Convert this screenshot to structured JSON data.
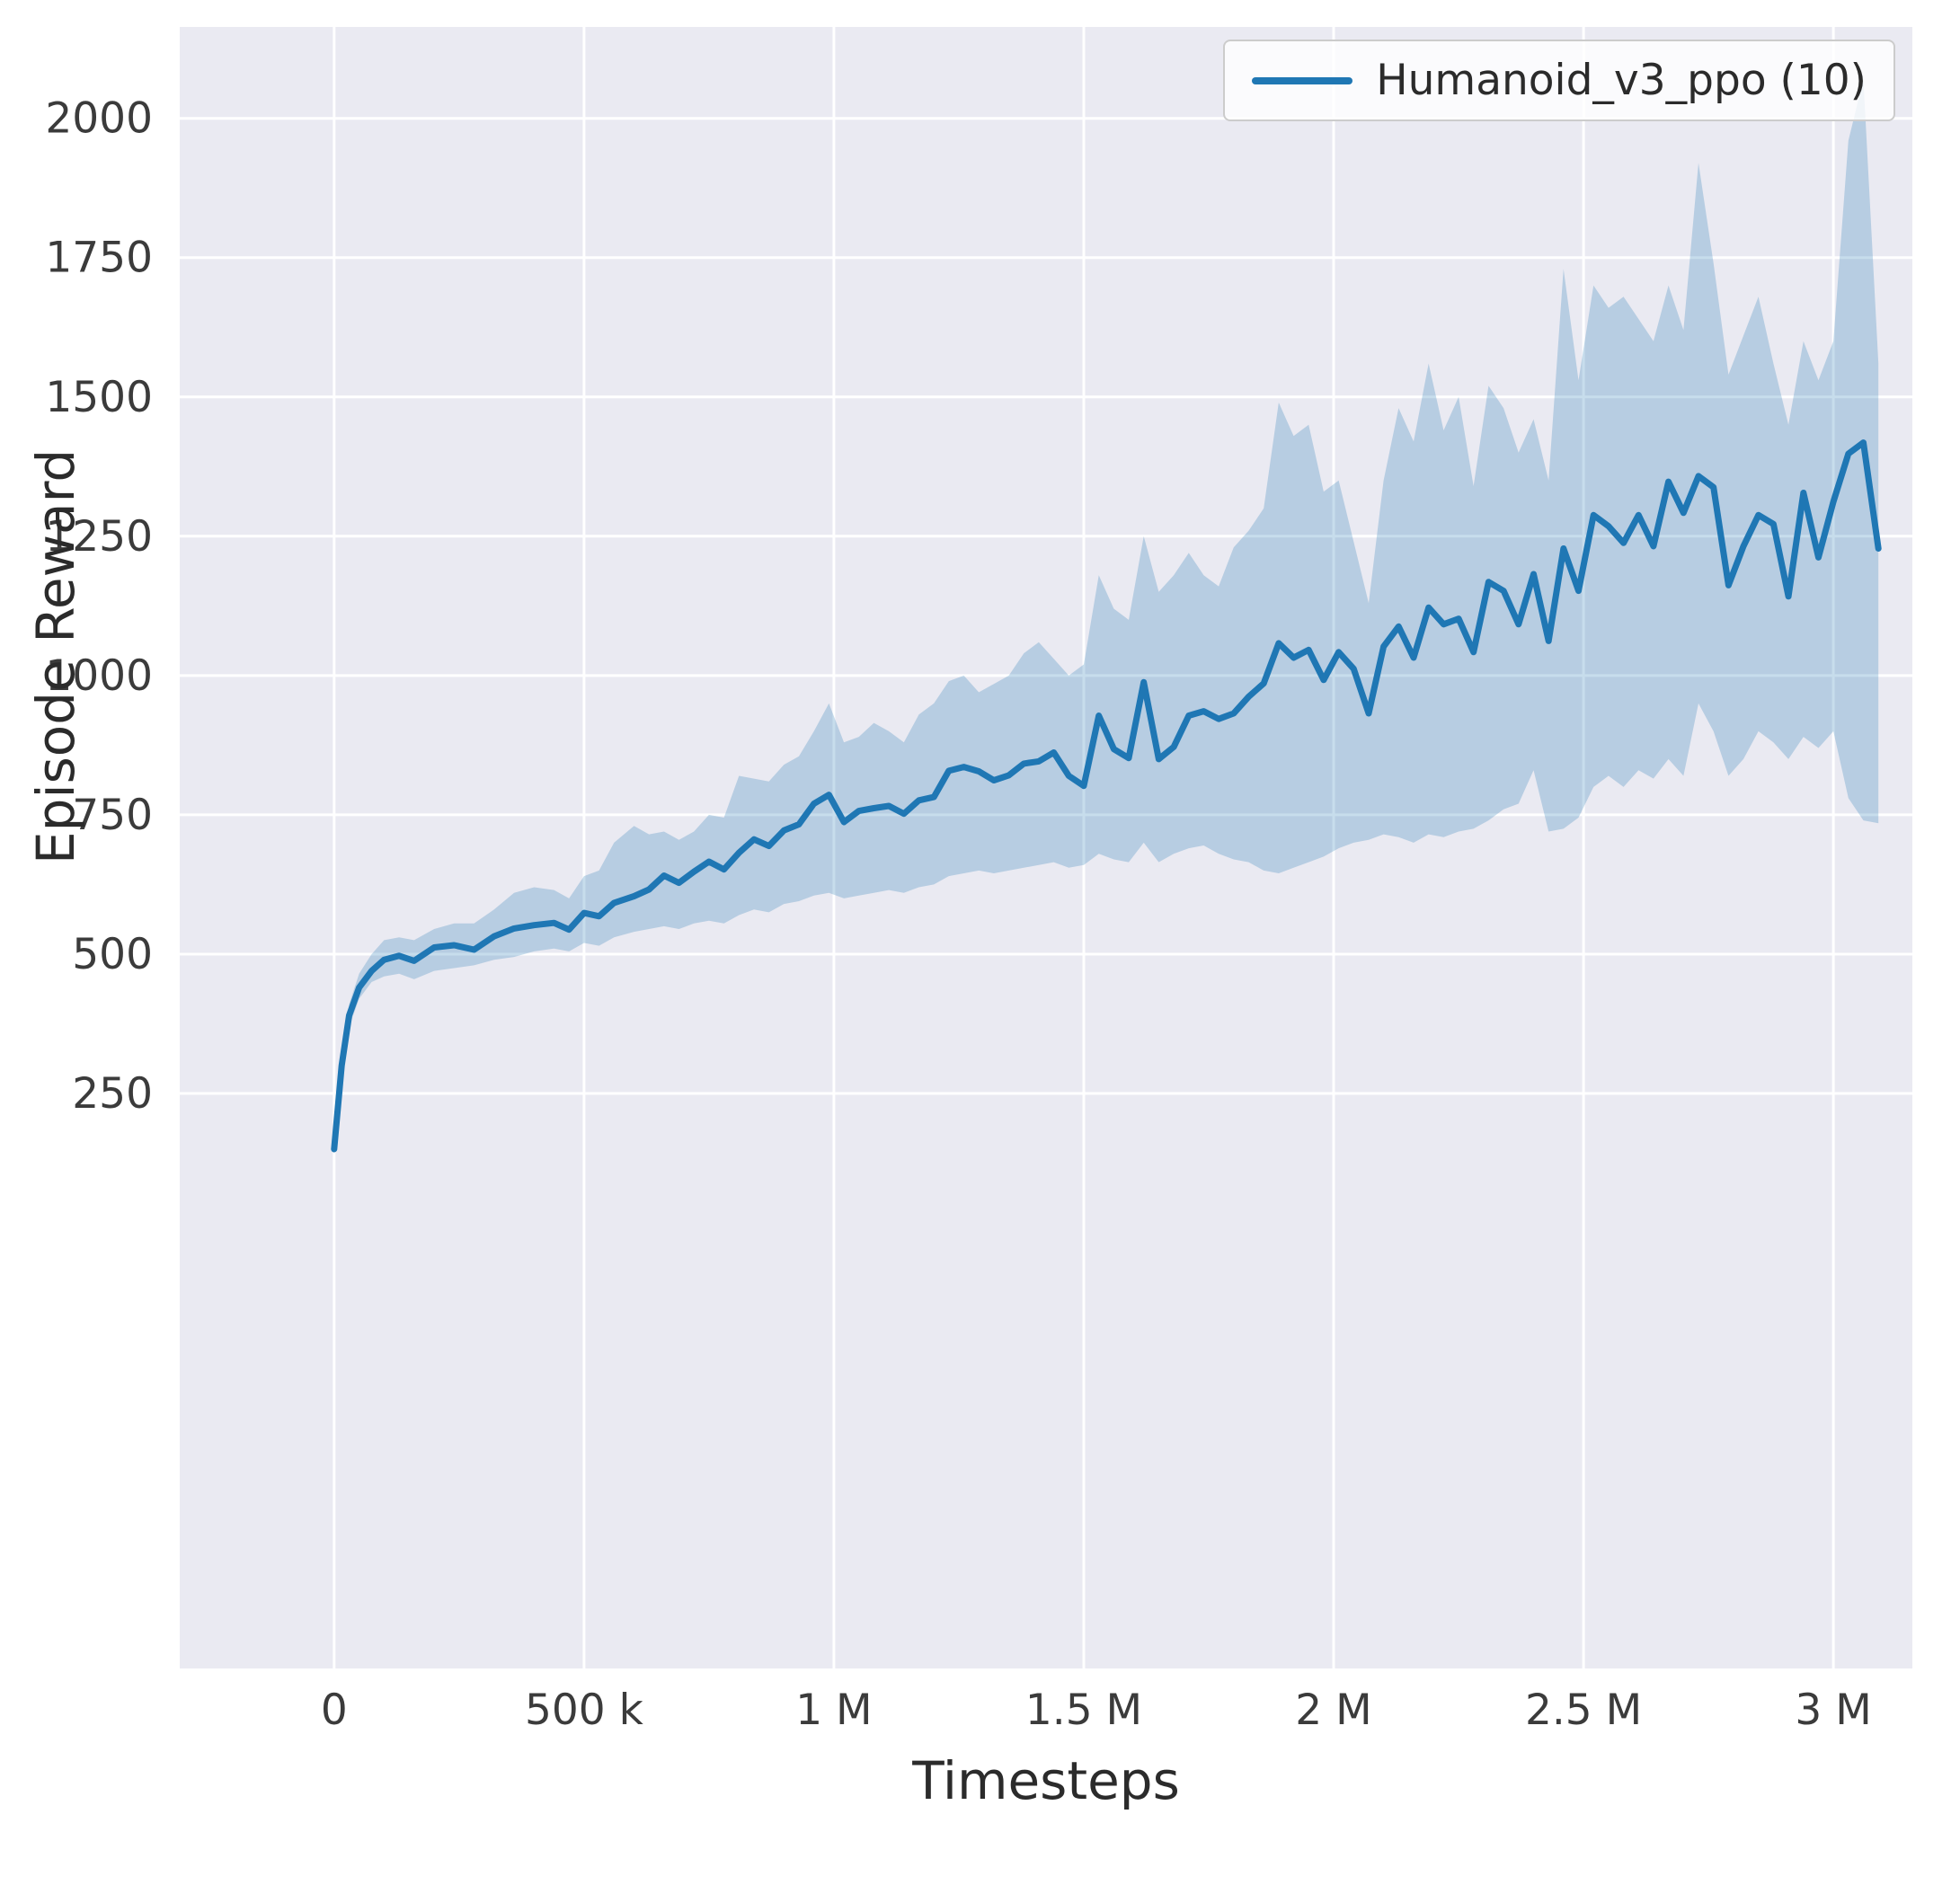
{
  "chart_data": {
    "type": "line",
    "xlabel": "Timesteps",
    "ylabel": "Episode Reward",
    "axes_background": "#eaeaf2",
    "grid_color": "#ffffff",
    "grid": true,
    "xlim": [
      -309000,
      3158000
    ],
    "ylim": [
      -782,
      2164
    ],
    "xticks": {
      "values": [
        0,
        500000,
        1000000,
        1500000,
        2000000,
        2500000,
        3000000
      ],
      "labels": [
        "0",
        "500 k",
        "1 M",
        "1.5 M",
        "2 M",
        "2.5 M",
        "3 M"
      ]
    },
    "yticks": {
      "values": [
        250,
        500,
        750,
        1000,
        1250,
        1500,
        1750,
        2000
      ],
      "labels": [
        "250",
        "500",
        "750",
        "1000",
        "1250",
        "1500",
        "1750",
        "2000"
      ]
    },
    "legend": {
      "location": "upper right"
    },
    "series": [
      {
        "name": "Humanoid_v3_ppo (10)",
        "color": "#1f77b4",
        "band_color": "rgba(31,119,180,0.25)",
        "x": [
          0,
          15000,
          30000,
          50000,
          75000,
          100000,
          130000,
          160000,
          200000,
          240000,
          280000,
          320000,
          360000,
          400000,
          440000,
          470000,
          500000,
          530000,
          560000,
          600000,
          630000,
          660000,
          690000,
          720000,
          750000,
          780000,
          810000,
          840000,
          870000,
          900000,
          930000,
          960000,
          990000,
          1020000,
          1050000,
          1080000,
          1110000,
          1140000,
          1170000,
          1200000,
          1230000,
          1260000,
          1290000,
          1320000,
          1350000,
          1380000,
          1410000,
          1440000,
          1470000,
          1500000,
          1530000,
          1560000,
          1590000,
          1620000,
          1650000,
          1680000,
          1710000,
          1740000,
          1770000,
          1800000,
          1830000,
          1860000,
          1890000,
          1920000,
          1950000,
          1980000,
          2010000,
          2040000,
          2070000,
          2100000,
          2130000,
          2160000,
          2190000,
          2220000,
          2250000,
          2280000,
          2310000,
          2340000,
          2370000,
          2400000,
          2430000,
          2460000,
          2490000,
          2520000,
          2550000,
          2580000,
          2610000,
          2640000,
          2670000,
          2700000,
          2730000,
          2760000,
          2790000,
          2820000,
          2850000,
          2880000,
          2910000,
          2940000,
          2970000,
          3000000,
          3030000,
          3060000,
          3090000
        ],
        "mean": [
          150,
          300,
          390,
          440,
          470,
          490,
          497,
          488,
          512,
          516,
          508,
          532,
          546,
          552,
          556,
          544,
          574,
          568,
          592,
          604,
          616,
          641,
          628,
          648,
          666,
          652,
          682,
          706,
          694,
          722,
          733,
          770,
          786,
          737,
          757,
          762,
          766,
          752,
          776,
          782,
          829,
          836,
          828,
          812,
          821,
          842,
          846,
          862,
          820,
          802,
          928,
          868,
          852,
          988,
          850,
          872,
          928,
          936,
          922,
          932,
          962,
          986,
          1058,
          1032,
          1046,
          992,
          1042,
          1012,
          932,
          1052,
          1088,
          1032,
          1122,
          1092,
          1102,
          1042,
          1168,
          1152,
          1092,
          1182,
          1062,
          1228,
          1152,
          1288,
          1268,
          1238,
          1288,
          1232,
          1348,
          1292,
          1358,
          1338,
          1162,
          1232,
          1288,
          1272,
          1142,
          1328,
          1212,
          1312,
          1398,
          1418,
          1228
        ],
        "lower": [
          140,
          285,
          370,
          420,
          450,
          460,
          465,
          455,
          470,
          475,
          480,
          490,
          495,
          505,
          510,
          505,
          520,
          515,
          530,
          540,
          545,
          550,
          545,
          555,
          560,
          555,
          570,
          580,
          575,
          590,
          595,
          605,
          610,
          600,
          605,
          610,
          615,
          610,
          620,
          625,
          640,
          645,
          650,
          645,
          650,
          655,
          660,
          665,
          655,
          660,
          680,
          670,
          665,
          700,
          665,
          680,
          690,
          695,
          680,
          670,
          665,
          650,
          645,
          655,
          665,
          675,
          690,
          700,
          705,
          715,
          710,
          700,
          715,
          710,
          720,
          725,
          740,
          760,
          770,
          830,
          720,
          725,
          745,
          800,
          820,
          800,
          830,
          815,
          850,
          820,
          950,
          900,
          820,
          850,
          900,
          880,
          850,
          890,
          870,
          900,
          780,
          740,
          735
        ],
        "upper": [
          160,
          315,
          410,
          465,
          500,
          525,
          530,
          525,
          545,
          555,
          555,
          580,
          610,
          620,
          615,
          600,
          640,
          650,
          700,
          730,
          715,
          720,
          705,
          720,
          750,
          745,
          820,
          815,
          810,
          840,
          855,
          900,
          950,
          880,
          890,
          915,
          900,
          880,
          930,
          950,
          990,
          1000,
          970,
          985,
          1000,
          1040,
          1060,
          1030,
          1000,
          1020,
          1180,
          1120,
          1100,
          1250,
          1150,
          1180,
          1220,
          1180,
          1160,
          1230,
          1260,
          1300,
          1490,
          1430,
          1450,
          1330,
          1350,
          1240,
          1130,
          1350,
          1480,
          1420,
          1560,
          1440,
          1500,
          1340,
          1520,
          1480,
          1400,
          1460,
          1350,
          1730,
          1530,
          1700,
          1660,
          1680,
          1640,
          1600,
          1700,
          1620,
          1920,
          1740,
          1540,
          1610,
          1680,
          1560,
          1450,
          1600,
          1530,
          1600,
          1960,
          2070,
          1560
        ]
      }
    ]
  }
}
